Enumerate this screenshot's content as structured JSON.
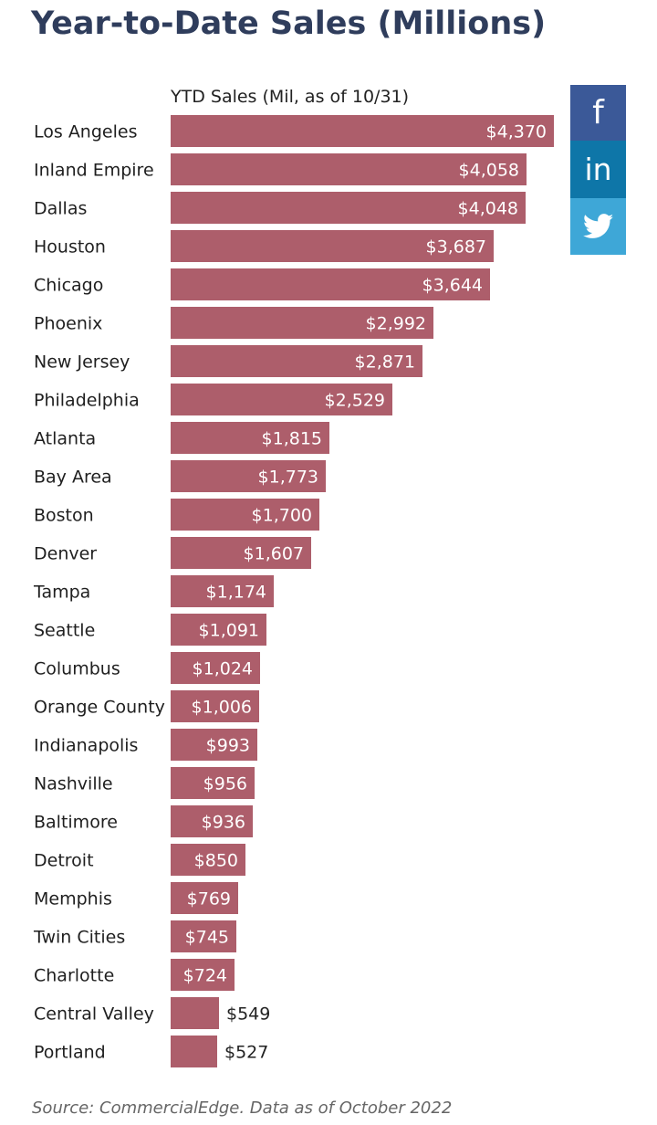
{
  "page": {
    "title": "Year-to-Date Sales (Millions)",
    "source": "Source: CommercialEdge. Data as of October 2022"
  },
  "share": {
    "buttons": [
      {
        "name": "facebook",
        "icon": "facebook-icon",
        "glyph": "f",
        "color": "#3b5998"
      },
      {
        "name": "linkedin",
        "icon": "linkedin-icon",
        "glyph": "in",
        "color": "#0e76a8"
      },
      {
        "name": "twitter",
        "icon": "twitter-icon",
        "glyph": "",
        "color": "#3ea7d7"
      }
    ]
  },
  "colors": {
    "bar": "#ad5e6b",
    "value_inside": "#ffffff",
    "value_outside": "#222222",
    "title": "#2f3d5c"
  },
  "chart_data": {
    "type": "bar",
    "orientation": "horizontal",
    "title": "Year-to-Date Sales (Millions)",
    "series": [
      {
        "name": "YTD Sales (Mil, as of 10/31)",
        "values": [
          4370,
          4058,
          4048,
          3687,
          3644,
          2992,
          2871,
          2529,
          1815,
          1773,
          1700,
          1607,
          1174,
          1091,
          1024,
          1006,
          993,
          956,
          936,
          850,
          769,
          745,
          724,
          549,
          527
        ]
      }
    ],
    "categories": [
      "Los Angeles",
      "Inland Empire",
      "Dallas",
      "Houston",
      "Chicago",
      "Phoenix",
      "New Jersey",
      "Philadelphia",
      "Atlanta",
      "Bay Area",
      "Boston",
      "Denver",
      "Tampa",
      "Seattle",
      "Columbus",
      "Orange County",
      "Indianapolis",
      "Nashville",
      "Baltimore",
      "Detroit",
      "Memphis",
      "Twin Cities",
      "Charlotte",
      "Central Valley",
      "Portland"
    ],
    "value_labels": [
      "$4,370",
      "$4,058",
      "$4,048",
      "$3,687",
      "$3,644",
      "$2,992",
      "$2,871",
      "$2,529",
      "$1,815",
      "$1,773",
      "$1,700",
      "$1,607",
      "$1,174",
      "$1,091",
      "$1,024",
      "$1,006",
      "$993",
      "$956",
      "$936",
      "$850",
      "$769",
      "$745",
      "$724",
      "$549",
      "$527"
    ],
    "xlim": [
      0,
      4370
    ],
    "grid": false,
    "legend": "none"
  }
}
